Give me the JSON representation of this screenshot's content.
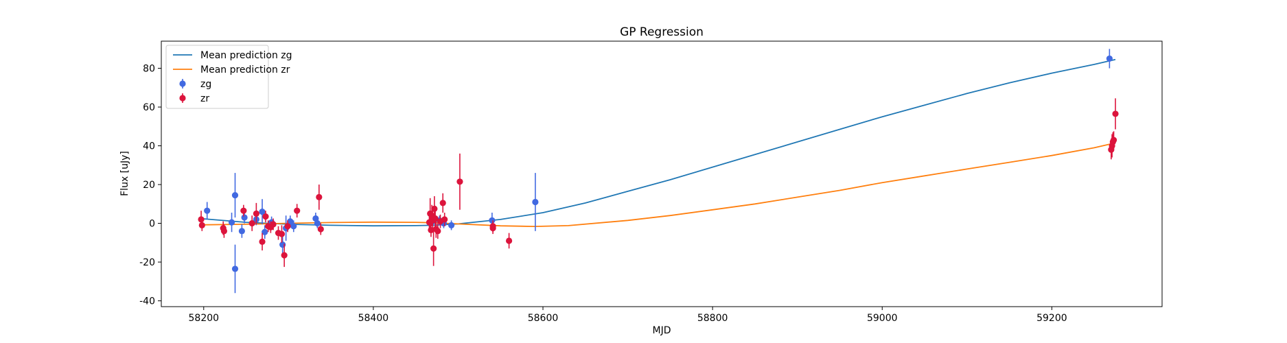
{
  "chart_data": {
    "type": "scatter",
    "title": "GP Regression",
    "xlabel": "MJD",
    "ylabel": "Flux [uJy]",
    "xlim": [
      58150,
      59330
    ],
    "ylim": [
      -43,
      94
    ],
    "xticks": [
      58200,
      58400,
      58600,
      58800,
      59000,
      59200
    ],
    "yticks": [
      -40,
      -20,
      0,
      20,
      40,
      60,
      80
    ],
    "grid": false,
    "legend_position": "top-left",
    "series": [
      {
        "name": "Mean prediction zg",
        "kind": "line",
        "color": "#1f77b4",
        "x": [
          58195,
          58250,
          58300,
          58350,
          58400,
          58450,
          58470,
          58500,
          58550,
          58600,
          58650,
          58700,
          58750,
          58800,
          58850,
          58900,
          58950,
          59000,
          59050,
          59100,
          59150,
          59200,
          59250,
          59275
        ],
        "y": [
          2.5,
          0.5,
          -0.5,
          -1.0,
          -1.3,
          -1.2,
          -1.0,
          -0.3,
          2.0,
          5.5,
          10.5,
          16.5,
          22.5,
          29.0,
          35.5,
          42.0,
          48.5,
          55.0,
          61.0,
          67.0,
          72.5,
          77.5,
          82.0,
          84.5
        ]
      },
      {
        "name": "Mean prediction zr",
        "kind": "line",
        "color": "#ff7f0e",
        "x": [
          58195,
          58250,
          58300,
          58350,
          58400,
          58450,
          58470,
          58500,
          58550,
          58590,
          58630,
          58700,
          58750,
          58800,
          58850,
          58900,
          58950,
          59000,
          59050,
          59100,
          59150,
          59200,
          59250,
          59275
        ],
        "y": [
          -0.8,
          -0.5,
          0.0,
          0.4,
          0.6,
          0.5,
          0.3,
          -0.3,
          -1.3,
          -1.6,
          -1.2,
          1.5,
          4.0,
          7.0,
          10.0,
          13.5,
          17.0,
          21.0,
          24.5,
          28.0,
          31.5,
          35.0,
          39.0,
          41.5
        ]
      },
      {
        "name": "zg",
        "kind": "errorbar",
        "color": "#4169e1",
        "x": [
          58204,
          58233,
          58237,
          58237,
          58245,
          58248,
          58262,
          58269,
          58272,
          58280,
          58293,
          58297,
          58302,
          58306,
          58332,
          58334,
          58470,
          58478,
          58483,
          58492,
          58540,
          58591,
          59268
        ],
        "y": [
          6.5,
          0.5,
          14.5,
          -23.5,
          -4.0,
          3.0,
          2.0,
          6.0,
          -4.5,
          0.5,
          -11.0,
          -2.5,
          1.0,
          -1.5,
          2.5,
          0.0,
          1.0,
          1.5,
          0.0,
          -1.0,
          1.5,
          11.0,
          85.0
        ],
        "err": [
          4.5,
          5.0,
          11.5,
          12.5,
          3.5,
          3.0,
          3.0,
          6.5,
          3.5,
          3.0,
          4.5,
          6.5,
          3.0,
          3.0,
          3.0,
          2.5,
          3.0,
          2.5,
          2.5,
          2.5,
          4.0,
          15.0,
          5.0
        ]
      },
      {
        "name": "zr",
        "kind": "errorbar",
        "color": "#dc143c",
        "x": [
          58197,
          58198,
          58223,
          58224,
          58247,
          58257,
          58262,
          58269,
          58273,
          58276,
          58279,
          58282,
          58288,
          58292,
          58295,
          58299,
          58310,
          58336,
          58338,
          58466,
          58467,
          58468,
          58469,
          58470,
          58471,
          58472,
          58473,
          58474,
          58476,
          58479,
          58482,
          58484,
          58502,
          58541,
          58541,
          58560,
          59270,
          59271,
          59272,
          59273,
          59275
        ],
        "y": [
          2.0,
          -1.0,
          -2.5,
          -4.0,
          6.5,
          0.0,
          5.0,
          -9.5,
          3.5,
          -1.5,
          -2.0,
          -0.5,
          -5.0,
          -5.5,
          -16.5,
          -1.5,
          6.5,
          13.5,
          -3.0,
          0.5,
          5.0,
          -3.5,
          4.0,
          1.5,
          -13.0,
          7.5,
          2.5,
          -3.0,
          -4.0,
          1.0,
          10.5,
          2.0,
          21.5,
          -1.5,
          -2.5,
          -9.0,
          38.0,
          40.0,
          42.0,
          43.0,
          56.5
        ],
        "err": [
          4.5,
          3.0,
          3.5,
          3.5,
          3.0,
          4.0,
          5.5,
          4.5,
          3.0,
          3.0,
          3.0,
          3.0,
          3.5,
          4.5,
          6.0,
          3.0,
          3.5,
          6.5,
          3.0,
          5.0,
          8.0,
          3.5,
          5.5,
          6.0,
          9.0,
          6.5,
          5.0,
          4.5,
          4.0,
          3.5,
          5.0,
          3.5,
          14.5,
          3.0,
          3.0,
          4.0,
          5.0,
          6.0,
          5.0,
          4.5,
          8.0
        ]
      }
    ]
  }
}
